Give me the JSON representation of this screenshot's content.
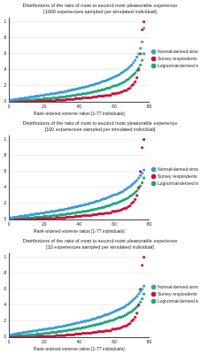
{
  "chart_data": [
    {
      "type": "scatter",
      "title": "Distributions of the ratio of most to second most pleasurable experience",
      "subtitle": "[1000 experiences sampled per simulated individual]",
      "x_label": "Rank-ordered extreme ratios [1-77 individuals]",
      "x": [
        1,
        2,
        3,
        4,
        5,
        6,
        7,
        8,
        9,
        10,
        11,
        12,
        13,
        14,
        15,
        16,
        17,
        18,
        19,
        20,
        21,
        22,
        23,
        24,
        25,
        26,
        27,
        28,
        29,
        30,
        31,
        32,
        33,
        34,
        35,
        36,
        37,
        38,
        39,
        40,
        41,
        42,
        43,
        44,
        45,
        46,
        47,
        48,
        49,
        50,
        51,
        52,
        53,
        54,
        55,
        56,
        57,
        58,
        59,
        60,
        61,
        62,
        63,
        64,
        65,
        66,
        67,
        68,
        69,
        70,
        71,
        72,
        73,
        74,
        75,
        76,
        77
      ],
      "series": [
        {
          "name": "Normal-derived sims",
          "color": "#3b9bd6",
          "values": [
            0.02,
            0.02,
            0.03,
            0.03,
            0.03,
            0.04,
            0.04,
            0.04,
            0.05,
            0.05,
            0.05,
            0.06,
            0.06,
            0.06,
            0.07,
            0.07,
            0.07,
            0.08,
            0.08,
            0.08,
            0.09,
            0.09,
            0.09,
            0.1,
            0.1,
            0.1,
            0.11,
            0.11,
            0.12,
            0.12,
            0.12,
            0.13,
            0.13,
            0.14,
            0.14,
            0.15,
            0.15,
            0.16,
            0.16,
            0.17,
            0.17,
            0.18,
            0.18,
            0.19,
            0.19,
            0.2,
            0.21,
            0.21,
            0.22,
            0.23,
            0.23,
            0.24,
            0.25,
            0.26,
            0.26,
            0.27,
            0.28,
            0.29,
            0.3,
            0.31,
            0.32,
            0.33,
            0.34,
            0.36,
            0.37,
            0.39,
            0.4,
            0.42,
            0.44,
            0.46,
            0.49,
            0.52,
            0.56,
            0.6,
            0.67,
            0.75,
            0.92
          ]
        },
        {
          "name": "Survey respondents",
          "color": "#c8143c",
          "values": [
            0,
            0,
            0,
            0,
            0,
            0,
            0,
            0,
            0,
            0,
            0,
            0,
            0,
            0,
            0,
            0.01,
            0.01,
            0.01,
            0.01,
            0.01,
            0.01,
            0.01,
            0.01,
            0.01,
            0.01,
            0.01,
            0.02,
            0.02,
            0.02,
            0.02,
            0.02,
            0.02,
            0.03,
            0.03,
            0.03,
            0.03,
            0.03,
            0.04,
            0.04,
            0.04,
            0.04,
            0.05,
            0.05,
            0.05,
            0.05,
            0.05,
            0.05,
            0.06,
            0.06,
            0.06,
            0.07,
            0.07,
            0.07,
            0.07,
            0.08,
            0.08,
            0.08,
            0.08,
            0.1,
            0.1,
            0.1,
            0.11,
            0.11,
            0.12,
            0.13,
            0.14,
            0.14,
            0.16,
            0.17,
            0.2,
            0.22,
            0.25,
            0.3,
            0.4,
            0.6,
            0.9,
            1
          ]
        },
        {
          "name": "Lognormal-derived sims",
          "color": "#1fa67a",
          "values": [
            0.01,
            0.01,
            0.01,
            0.01,
            0.01,
            0.01,
            0.01,
            0.02,
            0.02,
            0.02,
            0.02,
            0.02,
            0.02,
            0.02,
            0.03,
            0.03,
            0.03,
            0.03,
            0.03,
            0.04,
            0.04,
            0.04,
            0.04,
            0.04,
            0.05,
            0.05,
            0.05,
            0.05,
            0.06,
            0.06,
            0.06,
            0.06,
            0.07,
            0.07,
            0.07,
            0.08,
            0.08,
            0.08,
            0.09,
            0.09,
            0.09,
            0.1,
            0.1,
            0.1,
            0.11,
            0.11,
            0.12,
            0.12,
            0.13,
            0.13,
            0.14,
            0.14,
            0.15,
            0.15,
            0.16,
            0.17,
            0.17,
            0.18,
            0.19,
            0.2,
            0.2,
            0.21,
            0.22,
            0.23,
            0.24,
            0.25,
            0.27,
            0.28,
            0.3,
            0.32,
            0.34,
            0.36,
            0.39,
            0.42,
            0.46,
            0.52,
            0.6
          ]
        }
      ],
      "xlim": [
        0,
        80
      ],
      "xticks": [
        0,
        20,
        40,
        60,
        80
      ],
      "ylim": [
        0,
        1.05
      ],
      "yticks": [
        0,
        {
          "value": 0.2,
          "label": ".2"
        },
        {
          "value": 0.4,
          "label": ".4"
        },
        {
          "value": 0.6,
          "label": ".6"
        },
        {
          "value": 0.8,
          "label": ".8"
        },
        1
      ],
      "grid": true,
      "legend": "right",
      "marker": "circle"
    },
    {
      "type": "scatter",
      "title": "Distributions of the ratio of most to second most pleasurable experience",
      "subtitle": "[100 experiences sampled per simulated individual]",
      "x_label": "Rank-ordered extreme ratios [1-77 individuals]",
      "x": [
        1,
        2,
        3,
        4,
        5,
        6,
        7,
        8,
        9,
        10,
        11,
        12,
        13,
        14,
        15,
        16,
        17,
        18,
        19,
        20,
        21,
        22,
        23,
        24,
        25,
        26,
        27,
        28,
        29,
        30,
        31,
        32,
        33,
        34,
        35,
        36,
        37,
        38,
        39,
        40,
        41,
        42,
        43,
        44,
        45,
        46,
        47,
        48,
        49,
        50,
        51,
        52,
        53,
        54,
        55,
        56,
        57,
        58,
        59,
        60,
        61,
        62,
        63,
        64,
        65,
        66,
        67,
        68,
        69,
        70,
        71,
        72,
        73,
        74,
        75,
        76,
        77
      ],
      "series": [
        {
          "name": "Normal-derived sims",
          "color": "#3b9bd6",
          "values": [
            0.02,
            0.02,
            0.03,
            0.03,
            0.03,
            0.04,
            0.04,
            0.04,
            0.05,
            0.05,
            0.05,
            0.06,
            0.06,
            0.06,
            0.07,
            0.07,
            0.07,
            0.08,
            0.08,
            0.08,
            0.09,
            0.09,
            0.09,
            0.1,
            0.1,
            0.1,
            0.11,
            0.11,
            0.12,
            0.12,
            0.12,
            0.13,
            0.13,
            0.14,
            0.14,
            0.15,
            0.15,
            0.16,
            0.16,
            0.17,
            0.17,
            0.18,
            0.18,
            0.19,
            0.19,
            0.2,
            0.21,
            0.21,
            0.22,
            0.23,
            0.23,
            0.24,
            0.25,
            0.26,
            0.26,
            0.27,
            0.28,
            0.29,
            0.3,
            0.31,
            0.31,
            0.32,
            0.33,
            0.34,
            0.35,
            0.37,
            0.38,
            0.4,
            0.41,
            0.43,
            0.45,
            0.47,
            0.49,
            0.52,
            0.55,
            0.58,
            0.62
          ]
        },
        {
          "name": "Survey respondents",
          "color": "#c8143c",
          "values": [
            0,
            0,
            0,
            0,
            0,
            0,
            0,
            0,
            0,
            0,
            0,
            0,
            0,
            0,
            0,
            0.01,
            0.01,
            0.01,
            0.01,
            0.01,
            0.01,
            0.01,
            0.01,
            0.01,
            0.01,
            0.01,
            0.02,
            0.02,
            0.02,
            0.02,
            0.02,
            0.02,
            0.03,
            0.03,
            0.03,
            0.03,
            0.03,
            0.04,
            0.04,
            0.04,
            0.04,
            0.05,
            0.05,
            0.05,
            0.05,
            0.05,
            0.05,
            0.06,
            0.06,
            0.06,
            0.07,
            0.07,
            0.07,
            0.07,
            0.08,
            0.08,
            0.08,
            0.08,
            0.1,
            0.1,
            0.1,
            0.11,
            0.11,
            0.12,
            0.13,
            0.14,
            0.14,
            0.16,
            0.17,
            0.2,
            0.22,
            0.25,
            0.3,
            0.4,
            0.6,
            0.9,
            1
          ]
        },
        {
          "name": "Lognormal-derived sims",
          "color": "#1fa67a",
          "values": [
            0.01,
            0.01,
            0.01,
            0.01,
            0.01,
            0.01,
            0.01,
            0.02,
            0.02,
            0.02,
            0.02,
            0.02,
            0.02,
            0.02,
            0.03,
            0.03,
            0.03,
            0.03,
            0.03,
            0.04,
            0.04,
            0.04,
            0.04,
            0.04,
            0.05,
            0.05,
            0.05,
            0.05,
            0.06,
            0.06,
            0.06,
            0.06,
            0.07,
            0.07,
            0.07,
            0.08,
            0.08,
            0.08,
            0.09,
            0.09,
            0.09,
            0.1,
            0.1,
            0.1,
            0.11,
            0.11,
            0.12,
            0.12,
            0.13,
            0.13,
            0.14,
            0.14,
            0.15,
            0.15,
            0.16,
            0.17,
            0.17,
            0.18,
            0.19,
            0.2,
            0.2,
            0.21,
            0.22,
            0.23,
            0.24,
            0.25,
            0.26,
            0.27,
            0.29,
            0.3,
            0.32,
            0.34,
            0.36,
            0.39,
            0.42,
            0.46,
            0.52
          ]
        }
      ],
      "xlim": [
        0,
        80
      ],
      "xticks": [
        0,
        20,
        40,
        60,
        80
      ],
      "ylim": [
        0,
        1.05
      ],
      "yticks": [
        0,
        {
          "value": 0.2,
          "label": ".2"
        },
        {
          "value": 0.4,
          "label": ".4"
        },
        {
          "value": 0.6,
          "label": ".6"
        },
        {
          "value": 0.8,
          "label": ".8"
        },
        1
      ],
      "grid": true,
      "legend": "right",
      "marker": "circle"
    },
    {
      "type": "scatter",
      "title": "Distributions of the ratio of most to second most pleasurable experience",
      "subtitle": "[10 experiences sampled per simulated individual]",
      "x_label": "Rank-ordered extreme ratios [1-77 individuals]",
      "x": [
        1,
        2,
        3,
        4,
        5,
        6,
        7,
        8,
        9,
        10,
        11,
        12,
        13,
        14,
        15,
        16,
        17,
        18,
        19,
        20,
        21,
        22,
        23,
        24,
        25,
        26,
        27,
        28,
        29,
        30,
        31,
        32,
        33,
        34,
        35,
        36,
        37,
        38,
        39,
        40,
        41,
        42,
        43,
        44,
        45,
        46,
        47,
        48,
        49,
        50,
        51,
        52,
        53,
        54,
        55,
        56,
        57,
        58,
        59,
        60,
        61,
        62,
        63,
        64,
        65,
        66,
        67,
        68,
        69,
        70,
        71,
        72,
        73,
        74,
        75,
        76,
        77
      ],
      "series": [
        {
          "name": "Normal-derived sims",
          "color": "#3b9bd6",
          "values": [
            0.03,
            0.03,
            0.04,
            0.04,
            0.05,
            0.05,
            0.05,
            0.06,
            0.06,
            0.06,
            0.07,
            0.07,
            0.07,
            0.08,
            0.08,
            0.08,
            0.09,
            0.09,
            0.09,
            0.1,
            0.1,
            0.1,
            0.11,
            0.11,
            0.11,
            0.12,
            0.12,
            0.13,
            0.13,
            0.13,
            0.14,
            0.14,
            0.15,
            0.15,
            0.16,
            0.16,
            0.17,
            0.17,
            0.18,
            0.18,
            0.19,
            0.19,
            0.2,
            0.2,
            0.21,
            0.21,
            0.22,
            0.23,
            0.23,
            0.24,
            0.25,
            0.25,
            0.26,
            0.27,
            0.28,
            0.28,
            0.29,
            0.3,
            0.31,
            0.32,
            0.33,
            0.34,
            0.35,
            0.36,
            0.37,
            0.38,
            0.4,
            0.41,
            0.43,
            0.45,
            0.47,
            0.49,
            0.51,
            0.54,
            0.57,
            0.6,
            0.64
          ]
        },
        {
          "name": "Survey respondents",
          "color": "#c8143c",
          "values": [
            0,
            0,
            0,
            0,
            0,
            0,
            0,
            0,
            0,
            0,
            0,
            0,
            0,
            0,
            0,
            0.01,
            0.01,
            0.01,
            0.01,
            0.01,
            0.01,
            0.01,
            0.01,
            0.01,
            0.01,
            0.01,
            0.02,
            0.02,
            0.02,
            0.02,
            0.02,
            0.02,
            0.03,
            0.03,
            0.03,
            0.03,
            0.03,
            0.04,
            0.04,
            0.04,
            0.04,
            0.05,
            0.05,
            0.05,
            0.05,
            0.05,
            0.05,
            0.06,
            0.06,
            0.06,
            0.07,
            0.07,
            0.07,
            0.07,
            0.08,
            0.08,
            0.08,
            0.08,
            0.1,
            0.1,
            0.1,
            0.11,
            0.11,
            0.12,
            0.13,
            0.14,
            0.14,
            0.16,
            0.17,
            0.2,
            0.22,
            0.25,
            0.3,
            0.4,
            0.6,
            0.9,
            1
          ]
        },
        {
          "name": "Lognormal-derived sims",
          "color": "#1fa67a",
          "values": [
            0.01,
            0.01,
            0.01,
            0.01,
            0.02,
            0.02,
            0.02,
            0.02,
            0.02,
            0.02,
            0.03,
            0.03,
            0.03,
            0.03,
            0.03,
            0.04,
            0.04,
            0.04,
            0.04,
            0.05,
            0.05,
            0.05,
            0.05,
            0.06,
            0.06,
            0.06,
            0.06,
            0.07,
            0.07,
            0.07,
            0.08,
            0.08,
            0.08,
            0.09,
            0.09,
            0.09,
            0.1,
            0.1,
            0.11,
            0.11,
            0.11,
            0.12,
            0.12,
            0.13,
            0.13,
            0.14,
            0.14,
            0.15,
            0.15,
            0.16,
            0.16,
            0.17,
            0.17,
            0.18,
            0.19,
            0.19,
            0.2,
            0.21,
            0.21,
            0.22,
            0.23,
            0.24,
            0.25,
            0.25,
            0.26,
            0.27,
            0.28,
            0.3,
            0.31,
            0.32,
            0.34,
            0.36,
            0.38,
            0.41,
            0.44,
            0.48,
            0.54
          ]
        }
      ],
      "xlim": [
        0,
        80
      ],
      "xticks": [
        0,
        20,
        40,
        60,
        80
      ],
      "ylim": [
        0,
        1.05
      ],
      "yticks": [
        0,
        {
          "value": 0.2,
          "label": ".2"
        },
        {
          "value": 0.4,
          "label": ".4"
        },
        {
          "value": 0.6,
          "label": ".6"
        },
        {
          "value": 0.8,
          "label": ".8"
        },
        1
      ],
      "grid": true,
      "legend": "right",
      "marker": "circle"
    }
  ]
}
